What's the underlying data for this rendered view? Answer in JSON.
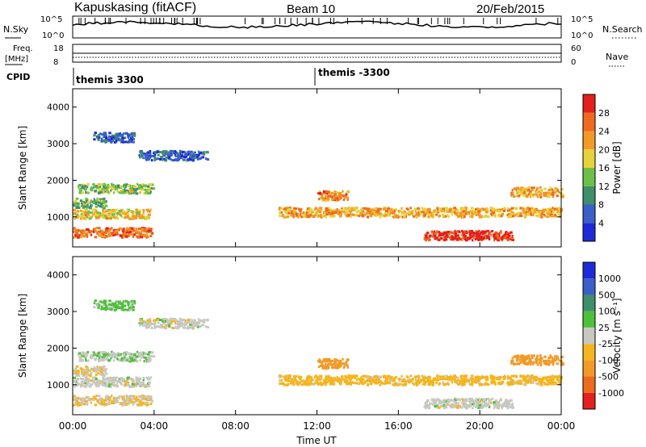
{
  "header": {
    "station": "Kapuskasing (fitACF)",
    "beam": "Beam 10",
    "date": "20/Feb/2015"
  },
  "top_panels": {
    "nsky_label": "N.Sky",
    "nsky_ticks": [
      "10^5",
      "10^0"
    ],
    "nsearch_label": "N.Search",
    "nsearch_ticks": [
      "10^5",
      "10^0"
    ],
    "freq_label": "Freq.",
    "freq_unit": "[MHz]",
    "freq_ticks": [
      "18",
      "8"
    ],
    "nave_label": "Nave",
    "nave_ticks": [
      "60",
      "0"
    ],
    "cpid_label": "CPID",
    "cpid_segments": [
      "themis 3300",
      "themis -3300"
    ]
  },
  "x_axis": {
    "label": "Time UT",
    "ticks": [
      "00:00",
      "04:00",
      "08:00",
      "12:00",
      "16:00",
      "20:00",
      "00:00"
    ]
  },
  "power_panel": {
    "ylabel": "Slant Range [km]",
    "yticks": [
      "1000",
      "2000",
      "3000",
      "4000"
    ],
    "cbar_label": "Power [dB]",
    "cbar_ticks": [
      "28",
      "24",
      "20",
      "16",
      "12",
      "8",
      "4"
    ],
    "cbar_colors": [
      "#1e2ad8",
      "#3a5fc8",
      "#3f8f6a",
      "#6cc04a",
      "#e6d23a",
      "#f29a28",
      "#ee6a1e",
      "#e2201c"
    ]
  },
  "velocity_panel": {
    "ylabel": "Slant Range [km]",
    "yticks": [
      "1000",
      "2000",
      "3000",
      "4000"
    ],
    "cbar_label": "Velocity [m s⁻¹]",
    "cbar_ticks": [
      "1000",
      "500",
      "100",
      "25",
      "-25",
      "-100",
      "-500",
      "-1000"
    ],
    "cbar_colors": [
      "#e2201c",
      "#ee6a1e",
      "#f29a28",
      "#f5b520",
      "#c8c8c2",
      "#4fc03a",
      "#3f8f6a",
      "#3a5fc8",
      "#1e2ad8"
    ]
  },
  "chart_data": {
    "type": "heatmap",
    "title": "Kapuskasing (fitACF)  Beam 10  20/Feb/2015",
    "xlabel": "Time UT",
    "ylabel": "Slant Range [km]",
    "xlim": [
      0,
      24
    ],
    "ylim": [
      180,
      4500
    ],
    "power_clim": [
      0,
      30
    ],
    "velocity_clim": [
      -1000,
      1000
    ],
    "backscatter_bands": [
      {
        "t_start": 0.0,
        "t_end": 3.9,
        "range_center": 600,
        "power_db": 24,
        "velocity": -25
      },
      {
        "t_start": 0.0,
        "t_end": 3.8,
        "range_center": 1100,
        "power_db": 18,
        "velocity": 0
      },
      {
        "t_start": 0.0,
        "t_end": 1.6,
        "range_center": 1400,
        "power_db": 12,
        "velocity": -20
      },
      {
        "t_start": 0.2,
        "t_end": 3.9,
        "range_center": 1800,
        "power_db": 14,
        "velocity": 10
      },
      {
        "t_start": 1.0,
        "t_end": 3.0,
        "range_center": 3200,
        "power_db": 6,
        "velocity": 40
      },
      {
        "t_start": 3.2,
        "t_end": 6.6,
        "range_center": 2700,
        "power_db": 6,
        "velocity": 0
      },
      {
        "t_start": 10.1,
        "t_end": 24.0,
        "range_center": 1150,
        "power_db": 20,
        "velocity": -50
      },
      {
        "t_start": 12.0,
        "t_end": 13.5,
        "range_center": 1600,
        "power_db": 22,
        "velocity": -200
      },
      {
        "t_start": 17.2,
        "t_end": 21.6,
        "range_center": 520,
        "power_db": 28,
        "velocity": 0
      },
      {
        "t_start": 21.5,
        "t_end": 24.0,
        "range_center": 1700,
        "power_db": 20,
        "velocity": -150
      }
    ]
  }
}
